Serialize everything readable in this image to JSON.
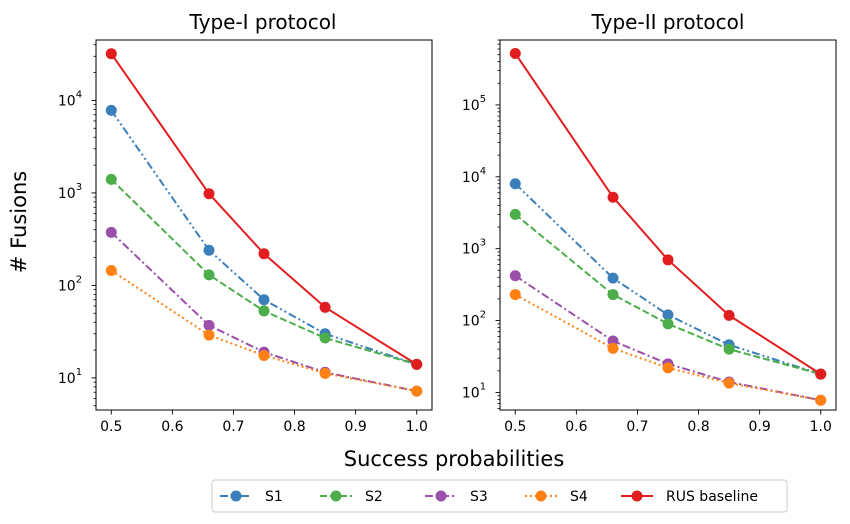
{
  "figure": {
    "ylabel": "# Fusions",
    "xlabel": "Success probabilities"
  },
  "legend": [
    {
      "key": "S1",
      "label": "S1"
    },
    {
      "key": "S2",
      "label": "S2"
    },
    {
      "key": "S3",
      "label": "S3"
    },
    {
      "key": "S4",
      "label": "S4"
    },
    {
      "key": "RUS",
      "label": "RUS baseline"
    }
  ],
  "styles": {
    "S1": {
      "color": "#3a7fba",
      "dash": "dashdotdot"
    },
    "S2": {
      "color": "#4cae4a",
      "dash": "dashed"
    },
    "S3": {
      "color": "#9a4fa8",
      "dash": "dashdot"
    },
    "S4": {
      "color": "#ff8113",
      "dash": "dotted"
    },
    "RUS": {
      "color": "#e21d1f",
      "dash": "solid"
    }
  },
  "chart_data": [
    {
      "type": "line",
      "title": "Type-I protocol",
      "xlabel": "Success probabilities",
      "ylabel": "# Fusions",
      "yscale": "log",
      "xlim": [
        0.475,
        1.025
      ],
      "ylim": [
        4.5,
        45000
      ],
      "xticks": [
        {
          "v": 0.5,
          "label": "0.5"
        },
        {
          "v": 0.6,
          "label": "0.6"
        },
        {
          "v": 0.7,
          "label": "0.7"
        },
        {
          "v": 0.8,
          "label": "0.8"
        },
        {
          "v": 0.9,
          "label": "0.9"
        },
        {
          "v": 1.0,
          "label": "1.0"
        }
      ],
      "yticks": [
        {
          "v": 10,
          "base": "10",
          "exp": "1"
        },
        {
          "v": 100,
          "base": "10",
          "exp": "2"
        },
        {
          "v": 1000,
          "base": "10",
          "exp": "3"
        },
        {
          "v": 10000,
          "base": "10",
          "exp": "4"
        }
      ],
      "x": [
        0.5,
        0.66,
        0.75,
        0.85,
        1.0
      ],
      "series": [
        {
          "key": "S1",
          "name": "S1",
          "values": [
            7800,
            240,
            70,
            30,
            14
          ]
        },
        {
          "key": "S2",
          "name": "S2",
          "values": [
            1400,
            130,
            53,
            27,
            14
          ]
        },
        {
          "key": "S3",
          "name": "S3",
          "values": [
            375,
            37,
            19,
            11.5,
            7.2
          ]
        },
        {
          "key": "S4",
          "name": "S4",
          "values": [
            145,
            29,
            17.5,
            11.2,
            7.2
          ]
        },
        {
          "key": "RUS",
          "name": "RUS baseline",
          "values": [
            32000,
            980,
            220,
            58,
            14
          ]
        }
      ]
    },
    {
      "type": "line",
      "title": "Type-II protocol",
      "xlabel": "Success probabilities",
      "ylabel": "# Fusions",
      "yscale": "log",
      "xlim": [
        0.475,
        1.025
      ],
      "ylim": [
        5.7,
        800000
      ],
      "xticks": [
        {
          "v": 0.5,
          "label": "0.5"
        },
        {
          "v": 0.6,
          "label": "0.6"
        },
        {
          "v": 0.7,
          "label": "0.7"
        },
        {
          "v": 0.8,
          "label": "0.8"
        },
        {
          "v": 0.9,
          "label": "0.9"
        },
        {
          "v": 1.0,
          "label": "1.0"
        }
      ],
      "yticks": [
        {
          "v": 10,
          "base": "10",
          "exp": "1"
        },
        {
          "v": 100,
          "base": "10",
          "exp": "2"
        },
        {
          "v": 1000,
          "base": "10",
          "exp": "3"
        },
        {
          "v": 10000,
          "base": "10",
          "exp": "4"
        },
        {
          "v": 100000,
          "base": "10",
          "exp": "5"
        }
      ],
      "x": [
        0.5,
        0.66,
        0.75,
        0.85,
        1.0
      ],
      "series": [
        {
          "key": "S1",
          "name": "S1",
          "values": [
            8000,
            390,
            120,
            46,
            18
          ]
        },
        {
          "key": "S2",
          "name": "S2",
          "values": [
            3000,
            230,
            90,
            40,
            18
          ]
        },
        {
          "key": "S3",
          "name": "S3",
          "values": [
            420,
            52,
            25,
            14,
            7.8
          ]
        },
        {
          "key": "S4",
          "name": "S4",
          "values": [
            230,
            41,
            22,
            13.5,
            7.8
          ]
        },
        {
          "key": "RUS",
          "name": "RUS baseline",
          "values": [
            520000,
            5200,
            700,
            118,
            18
          ]
        }
      ]
    }
  ]
}
